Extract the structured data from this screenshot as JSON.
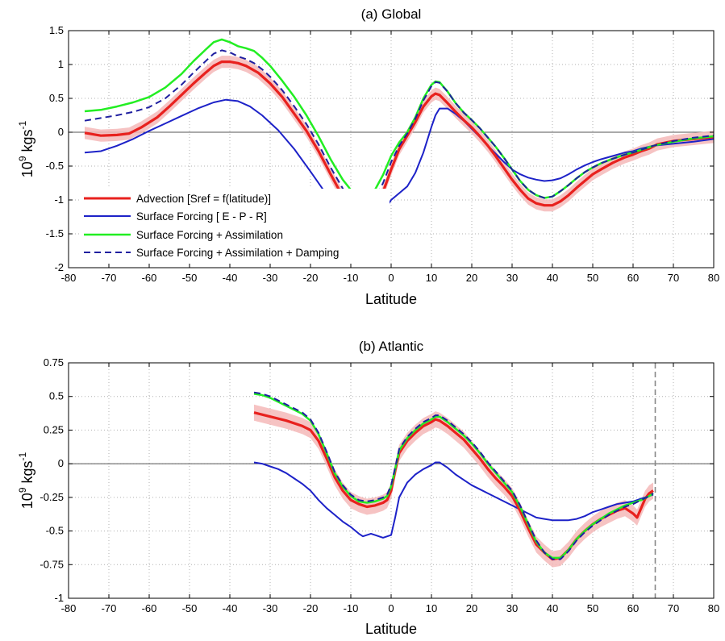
{
  "chart_data": [
    {
      "type": "line",
      "title": "(a) Global",
      "xlabel": "Latitude",
      "ylabel_base": "10",
      "ylabel_exp": "9",
      "ylabel_unit": " kgs",
      "ylabel_unit_exp": "-1",
      "xlim": [
        -80,
        80
      ],
      "ylim": [
        -2,
        1.5
      ],
      "xticks": [
        -80,
        -70,
        -60,
        -50,
        -40,
        -30,
        -20,
        -10,
        0,
        10,
        20,
        30,
        40,
        50,
        60,
        70,
        80
      ],
      "yticks": [
        -2,
        -1.5,
        -1,
        -0.5,
        0,
        0.5,
        1,
        1.5
      ],
      "grid": true,
      "legend_position": "bottom-left",
      "colors": {
        "advection": "#e8211e",
        "band": "#f4b8b8",
        "surface": "#1d22c8",
        "assim": "#22ee22",
        "damping": "#1f1fa0",
        "zero": "#555555"
      },
      "series": [
        {
          "name": "Advection [Sref = f(latitude)]",
          "style": "red-band",
          "band_width": 0.09,
          "x": [
            -76,
            -72,
            -68,
            -65,
            -62,
            -58,
            -55,
            -52,
            -49,
            -46,
            -44,
            -42,
            -40,
            -38,
            -36,
            -33,
            -30,
            -27,
            -24,
            -21,
            -18,
            -15,
            -12,
            -10,
            -8,
            -6,
            -4,
            -2,
            0,
            2,
            4,
            6,
            8,
            10,
            11,
            12,
            14,
            16,
            18,
            20,
            22,
            24,
            26,
            28,
            30,
            32,
            34,
            36,
            38,
            40,
            42,
            44,
            46,
            48,
            50,
            52,
            55,
            58,
            60,
            62,
            64,
            66,
            70,
            75,
            80
          ],
          "y": [
            -0.01,
            -0.05,
            -0.04,
            -0.02,
            0.07,
            0.22,
            0.38,
            0.55,
            0.72,
            0.88,
            0.98,
            1.04,
            1.04,
            1.02,
            0.98,
            0.88,
            0.72,
            0.52,
            0.27,
            0.02,
            -0.28,
            -0.62,
            -0.95,
            -1.12,
            -1.25,
            -1.22,
            -1.1,
            -0.88,
            -0.55,
            -0.25,
            -0.05,
            0.15,
            0.38,
            0.53,
            0.57,
            0.55,
            0.43,
            0.3,
            0.18,
            0.07,
            -0.06,
            -0.2,
            -0.36,
            -0.53,
            -0.7,
            -0.85,
            -0.98,
            -1.05,
            -1.08,
            -1.08,
            -1.02,
            -0.93,
            -0.82,
            -0.72,
            -0.62,
            -0.55,
            -0.45,
            -0.37,
            -0.33,
            -0.28,
            -0.24,
            -0.18,
            -0.13,
            -0.1,
            -0.07
          ]
        },
        {
          "name": "Surface Forcing [ E - P - R]",
          "style": "solid",
          "x": [
            -76,
            -72,
            -68,
            -64,
            -60,
            -56,
            -52,
            -48,
            -44,
            -41,
            -38,
            -35,
            -32,
            -28,
            -24,
            -20,
            -16,
            -12,
            -10,
            -8,
            -6,
            -4,
            -2,
            0,
            2,
            4,
            6,
            8,
            10,
            11,
            12,
            14,
            16,
            18,
            20,
            22,
            24,
            26,
            28,
            30,
            32,
            34,
            36,
            38,
            40,
            42,
            44,
            46,
            48,
            50,
            52,
            55,
            58,
            60,
            62,
            65,
            70,
            75,
            80
          ],
          "y": [
            -0.3,
            -0.28,
            -0.2,
            -0.1,
            0.02,
            0.13,
            0.24,
            0.35,
            0.44,
            0.48,
            0.46,
            0.38,
            0.25,
            0.03,
            -0.25,
            -0.58,
            -0.92,
            -1.22,
            -1.36,
            -1.44,
            -1.42,
            -1.32,
            -1.18,
            -1.0,
            -0.9,
            -0.8,
            -0.6,
            -0.3,
            0.08,
            0.25,
            0.35,
            0.35,
            0.27,
            0.17,
            0.05,
            -0.07,
            -0.2,
            -0.32,
            -0.44,
            -0.55,
            -0.62,
            -0.67,
            -0.7,
            -0.72,
            -0.71,
            -0.68,
            -0.62,
            -0.55,
            -0.49,
            -0.44,
            -0.4,
            -0.35,
            -0.3,
            -0.28,
            -0.24,
            -0.2,
            -0.17,
            -0.14,
            -0.1
          ]
        },
        {
          "name": "Surface Forcing + Assimilation",
          "style": "solid",
          "x": [
            -76,
            -72,
            -68,
            -64,
            -60,
            -56,
            -52,
            -49,
            -46,
            -44,
            -42,
            -40,
            -38,
            -36,
            -34,
            -32,
            -30,
            -27,
            -24,
            -21,
            -18,
            -15,
            -12,
            -10,
            -8,
            -6,
            -4,
            -2,
            0,
            2,
            4,
            6,
            8,
            10,
            11,
            12,
            14,
            16,
            18,
            20,
            22,
            24,
            26,
            28,
            30,
            32,
            34,
            36,
            38,
            40,
            42,
            44,
            46,
            48,
            50,
            52,
            55,
            58,
            60,
            62,
            65,
            70,
            75,
            80
          ],
          "y": [
            0.31,
            0.33,
            0.38,
            0.44,
            0.52,
            0.66,
            0.86,
            1.05,
            1.22,
            1.33,
            1.37,
            1.33,
            1.27,
            1.24,
            1.2,
            1.1,
            0.98,
            0.76,
            0.52,
            0.25,
            -0.06,
            -0.4,
            -0.7,
            -0.85,
            -0.97,
            -0.96,
            -0.85,
            -0.63,
            -0.35,
            -0.15,
            0.0,
            0.22,
            0.5,
            0.7,
            0.75,
            0.74,
            0.6,
            0.43,
            0.29,
            0.18,
            0.06,
            -0.08,
            -0.22,
            -0.38,
            -0.55,
            -0.72,
            -0.85,
            -0.93,
            -0.97,
            -0.95,
            -0.87,
            -0.78,
            -0.68,
            -0.59,
            -0.52,
            -0.46,
            -0.39,
            -0.33,
            -0.3,
            -0.26,
            -0.2,
            -0.14,
            -0.09,
            -0.06
          ]
        },
        {
          "name": "Surface Forcing + Assimilation + Damping",
          "style": "dashed",
          "x": [
            -76,
            -72,
            -68,
            -64,
            -60,
            -56,
            -52,
            -49,
            -46,
            -44,
            -42,
            -40,
            -38,
            -36,
            -34,
            -32,
            -30,
            -27,
            -24,
            -21,
            -18,
            -15,
            -12,
            -10,
            -8,
            -6,
            -4,
            -2,
            0,
            2,
            4,
            6,
            8,
            10,
            11,
            12,
            14,
            16,
            18,
            20,
            22,
            24,
            26,
            28,
            30,
            32,
            34,
            36,
            38,
            40,
            42,
            44,
            46,
            48,
            50,
            52,
            55,
            58,
            60,
            62,
            65,
            70,
            75,
            80
          ],
          "y": [
            0.17,
            0.21,
            0.25,
            0.3,
            0.37,
            0.5,
            0.7,
            0.88,
            1.05,
            1.16,
            1.21,
            1.18,
            1.12,
            1.08,
            1.02,
            0.93,
            0.82,
            0.62,
            0.38,
            0.12,
            -0.18,
            -0.52,
            -0.83,
            -0.98,
            -1.12,
            -1.1,
            -0.98,
            -0.75,
            -0.44,
            -0.2,
            -0.02,
            0.2,
            0.47,
            0.68,
            0.74,
            0.73,
            0.6,
            0.43,
            0.29,
            0.18,
            0.06,
            -0.08,
            -0.22,
            -0.38,
            -0.55,
            -0.72,
            -0.85,
            -0.93,
            -0.97,
            -0.95,
            -0.87,
            -0.78,
            -0.68,
            -0.59,
            -0.52,
            -0.46,
            -0.39,
            -0.33,
            -0.3,
            -0.26,
            -0.2,
            -0.13,
            -0.08,
            -0.05
          ]
        }
      ]
    },
    {
      "type": "line",
      "title": "(b) Atlantic",
      "xlabel": "Latitude",
      "ylabel_base": "10",
      "ylabel_exp": "9",
      "ylabel_unit": " kgs",
      "ylabel_unit_exp": "-1",
      "xlim": [
        -80,
        80
      ],
      "ylim": [
        -1,
        0.75
      ],
      "xticks": [
        -80,
        -70,
        -60,
        -50,
        -40,
        -30,
        -20,
        -10,
        0,
        10,
        20,
        30,
        40,
        50,
        60,
        70,
        80
      ],
      "yticks": [
        -1,
        -0.75,
        -0.5,
        -0.25,
        0,
        0.25,
        0.5,
        0.75
      ],
      "grid": true,
      "vline_x": 65.5,
      "colors": {
        "advection": "#e8211e",
        "band": "#f4b8b8",
        "surface": "#1d22c8",
        "assim": "#22ee22",
        "damping": "#1f1fa0",
        "zero": "#555555",
        "vline": "#888888"
      },
      "series": [
        {
          "name": "Advection [Sref = f(latitude)]",
          "style": "red-band",
          "band_width": 0.06,
          "x": [
            -34,
            -30,
            -26,
            -22,
            -20,
            -18,
            -16,
            -14,
            -12,
            -10,
            -8,
            -6,
            -4,
            -2,
            -1,
            0,
            1,
            2,
            4,
            6,
            8,
            10,
            11,
            12,
            14,
            16,
            18,
            20,
            22,
            24,
            26,
            28,
            30,
            32,
            34,
            36,
            38,
            40,
            42,
            44,
            46,
            48,
            50,
            52,
            54,
            56,
            58,
            60,
            61,
            62,
            63,
            64,
            65
          ],
          "y": [
            0.38,
            0.35,
            0.32,
            0.28,
            0.25,
            0.17,
            0.04,
            -0.1,
            -0.2,
            -0.27,
            -0.3,
            -0.32,
            -0.31,
            -0.29,
            -0.27,
            -0.2,
            -0.05,
            0.08,
            0.17,
            0.23,
            0.28,
            0.31,
            0.33,
            0.32,
            0.28,
            0.23,
            0.18,
            0.11,
            0.04,
            -0.04,
            -0.11,
            -0.17,
            -0.24,
            -0.35,
            -0.48,
            -0.6,
            -0.66,
            -0.71,
            -0.7,
            -0.64,
            -0.56,
            -0.5,
            -0.45,
            -0.41,
            -0.38,
            -0.35,
            -0.33,
            -0.37,
            -0.4,
            -0.33,
            -0.26,
            -0.22,
            -0.2
          ]
        },
        {
          "name": "Surface Forcing [ E - P - R]",
          "style": "solid",
          "x": [
            -34,
            -32,
            -30,
            -28,
            -26,
            -24,
            -22,
            -20,
            -18,
            -16,
            -14,
            -12,
            -10,
            -8,
            -7,
            -6,
            -5,
            -4,
            -2,
            0,
            1,
            2,
            4,
            6,
            8,
            10,
            11,
            12,
            14,
            16,
            18,
            20,
            22,
            24,
            26,
            28,
            30,
            32,
            34,
            36,
            38,
            40,
            42,
            44,
            46,
            48,
            50,
            52,
            54,
            56,
            58,
            60,
            62,
            64,
            65
          ],
          "y": [
            0.01,
            0.0,
            -0.02,
            -0.04,
            -0.07,
            -0.11,
            -0.15,
            -0.2,
            -0.27,
            -0.33,
            -0.38,
            -0.43,
            -0.47,
            -0.52,
            -0.54,
            -0.53,
            -0.52,
            -0.53,
            -0.55,
            -0.53,
            -0.4,
            -0.25,
            -0.14,
            -0.08,
            -0.04,
            -0.01,
            0.01,
            0.01,
            -0.03,
            -0.08,
            -0.12,
            -0.16,
            -0.19,
            -0.22,
            -0.25,
            -0.28,
            -0.31,
            -0.34,
            -0.37,
            -0.4,
            -0.41,
            -0.42,
            -0.42,
            -0.42,
            -0.41,
            -0.39,
            -0.36,
            -0.34,
            -0.32,
            -0.3,
            -0.29,
            -0.28,
            -0.26,
            -0.24,
            -0.23
          ]
        },
        {
          "name": "Surface Forcing + Assimilation",
          "style": "solid",
          "x": [
            -34,
            -32,
            -30,
            -28,
            -26,
            -24,
            -22,
            -20,
            -18,
            -16,
            -14,
            -12,
            -10,
            -8,
            -6,
            -4,
            -2,
            -1,
            0,
            1,
            2,
            4,
            6,
            8,
            10,
            11,
            12,
            14,
            16,
            18,
            20,
            22,
            24,
            26,
            28,
            30,
            32,
            34,
            36,
            38,
            40,
            42,
            44,
            46,
            48,
            50,
            52,
            54,
            56,
            58,
            60,
            62,
            64,
            65
          ],
          "y": [
            0.52,
            0.51,
            0.49,
            0.46,
            0.43,
            0.4,
            0.37,
            0.32,
            0.22,
            0.08,
            -0.07,
            -0.17,
            -0.24,
            -0.28,
            -0.29,
            -0.28,
            -0.26,
            -0.24,
            -0.17,
            -0.04,
            0.1,
            0.19,
            0.25,
            0.3,
            0.33,
            0.35,
            0.35,
            0.31,
            0.26,
            0.21,
            0.15,
            0.08,
            0.0,
            -0.07,
            -0.14,
            -0.21,
            -0.32,
            -0.45,
            -0.58,
            -0.66,
            -0.7,
            -0.7,
            -0.64,
            -0.56,
            -0.5,
            -0.45,
            -0.41,
            -0.37,
            -0.34,
            -0.31,
            -0.29,
            -0.27,
            -0.24,
            -0.22
          ]
        },
        {
          "name": "Surface Forcing + Assimilation + Damping",
          "style": "dashed",
          "x": [
            -34,
            -32,
            -30,
            -28,
            -26,
            -24,
            -22,
            -20,
            -18,
            -16,
            -14,
            -12,
            -10,
            -8,
            -6,
            -4,
            -2,
            -1,
            0,
            1,
            2,
            4,
            6,
            8,
            10,
            11,
            12,
            14,
            16,
            18,
            20,
            22,
            24,
            26,
            28,
            30,
            32,
            34,
            36,
            38,
            40,
            42,
            44,
            46,
            48,
            50,
            52,
            54,
            56,
            58,
            60,
            62,
            64,
            65
          ],
          "y": [
            0.53,
            0.52,
            0.5,
            0.47,
            0.44,
            0.41,
            0.38,
            0.33,
            0.23,
            0.09,
            -0.06,
            -0.16,
            -0.23,
            -0.27,
            -0.28,
            -0.27,
            -0.25,
            -0.23,
            -0.16,
            -0.03,
            0.11,
            0.2,
            0.26,
            0.31,
            0.34,
            0.36,
            0.36,
            0.32,
            0.27,
            0.22,
            0.16,
            0.09,
            0.01,
            -0.06,
            -0.13,
            -0.2,
            -0.31,
            -0.44,
            -0.57,
            -0.66,
            -0.71,
            -0.71,
            -0.65,
            -0.57,
            -0.51,
            -0.46,
            -0.42,
            -0.38,
            -0.35,
            -0.32,
            -0.3,
            -0.27,
            -0.24,
            -0.22
          ]
        }
      ]
    }
  ]
}
